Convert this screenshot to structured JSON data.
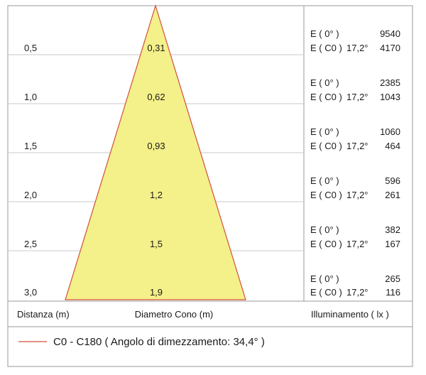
{
  "colors": {
    "cone_fill": "#f4f08a",
    "cone_stroke": "#d2503c",
    "grid": "#c8c8c8",
    "border": "#9a9a9a",
    "text": "#1a1a1a"
  },
  "rows": [
    {
      "distance": "0,5",
      "diameter": "0,31",
      "e0_label": "E ( 0° )",
      "e0_value": "9540",
      "ec0_label": "E ( C0 )",
      "angle": "17,2°",
      "ec0_value": "4170"
    },
    {
      "distance": "1,0",
      "diameter": "0,62",
      "e0_label": "E ( 0° )",
      "e0_value": "2385",
      "ec0_label": "E ( C0 )",
      "angle": "17,2°",
      "ec0_value": "1043"
    },
    {
      "distance": "1,5",
      "diameter": "0,93",
      "e0_label": "E ( 0° )",
      "e0_value": "1060",
      "ec0_label": "E ( C0 )",
      "angle": "17,2°",
      "ec0_value": "464"
    },
    {
      "distance": "2,0",
      "diameter": "1,2",
      "e0_label": "E ( 0° )",
      "e0_value": "596",
      "ec0_label": "E ( C0 )",
      "angle": "17,2°",
      "ec0_value": "261"
    },
    {
      "distance": "2,5",
      "diameter": "1,5",
      "e0_label": "E ( 0° )",
      "e0_value": "382",
      "ec0_label": "E ( C0 )",
      "angle": "17,2°",
      "ec0_value": "167"
    },
    {
      "distance": "3,0",
      "diameter": "1,9",
      "e0_label": "E ( 0° )",
      "e0_value": "265",
      "ec0_label": "E ( C0 )",
      "angle": "17,2°",
      "ec0_value": "116"
    }
  ],
  "footer": {
    "distance_header": "Distanza (m)",
    "diameter_header": "Diametro Cono (m)",
    "illuminance_header": "Illuminamento ( lx )"
  },
  "legend": {
    "label": "C0 - C180  ( Angolo di dimezzamento: 34,4° )"
  }
}
